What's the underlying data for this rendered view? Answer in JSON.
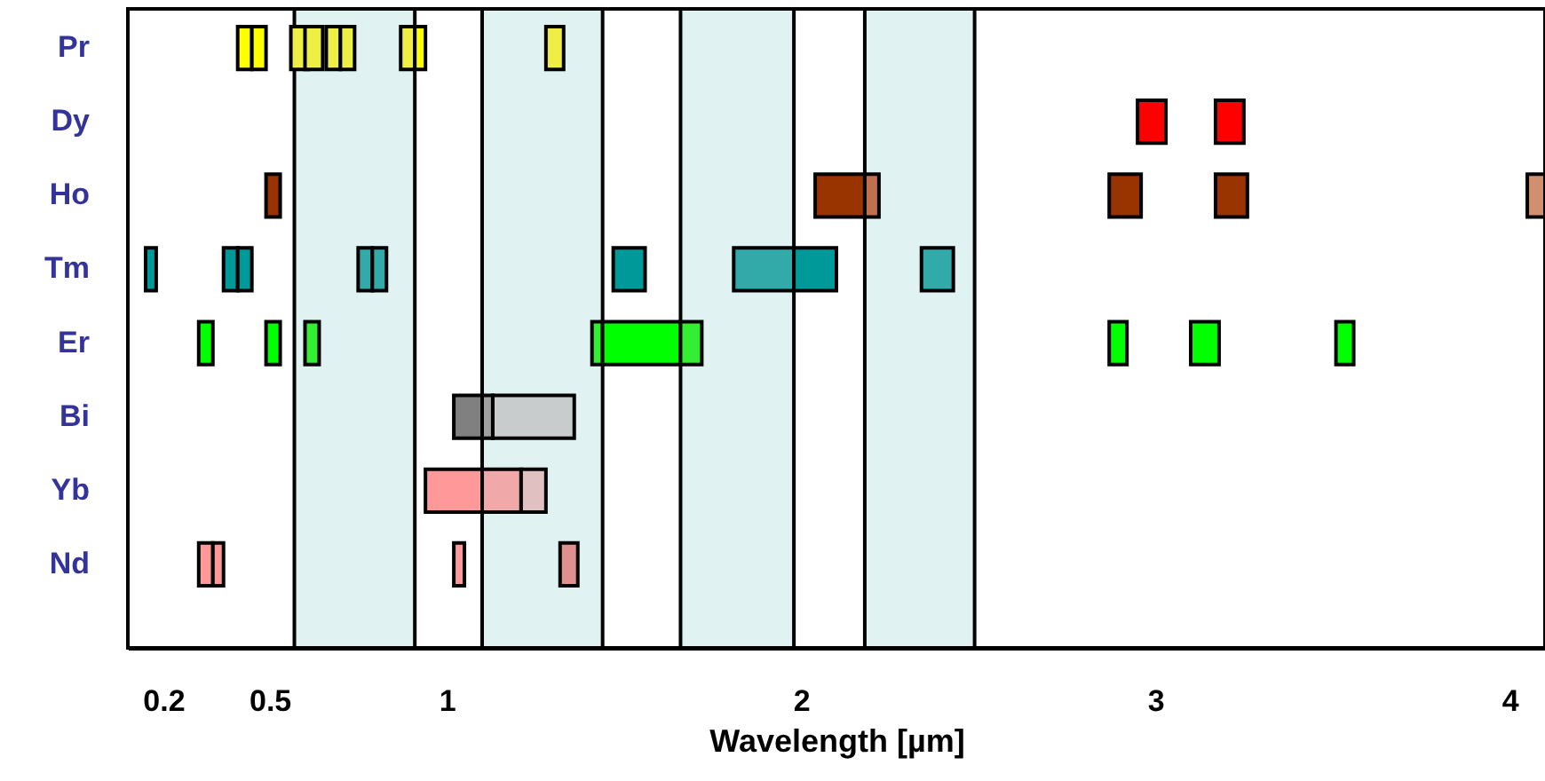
{
  "chart_data": {
    "type": "bar",
    "orientation": "horizontal",
    "xlabel": "Wavelength [µm]",
    "categories": [
      "Pr",
      "Dy",
      "Ho",
      "Tm",
      "Er",
      "Bi",
      "Yb",
      "Nd"
    ],
    "xlim": [
      0.1,
      4.1
    ],
    "xticks": [
      0.2,
      0.5,
      1,
      2,
      3,
      4
    ],
    "series": [
      {
        "values": [
          0.04,
          0.08,
          0.04,
          0.03,
          0.04,
          0.08,
          0.16,
          0.04
        ],
        "base": [
          0.41,
          2.95,
          0.49,
          0.15,
          0.3,
          1.02,
          0.94,
          0.3
        ],
        "colors": [
          "#ffff00",
          "#ff0000",
          "#993300",
          "#009999",
          "#00ff00",
          "#808080",
          "#ff9999",
          "#ff9999"
        ]
      },
      {
        "values": [
          0.04,
          0.08,
          0.14,
          0.04,
          0.04,
          0.03,
          0.11,
          0.03
        ],
        "base": [
          0.45,
          3.17,
          2.04,
          0.37,
          0.49,
          1.1,
          1.1,
          0.34
        ],
        "colors": [
          "#ffff00",
          "#ff0000",
          "#993300",
          "#009999",
          "#00ff00",
          "#a0a0a0",
          "#f0a8a8",
          "#ff9999"
        ]
      },
      {
        "values": [
          0.05,
          null,
          0.04,
          0.04,
          0.04,
          0.23,
          0.07,
          0.03
        ],
        "base": [
          0.56,
          null,
          2.18,
          0.41,
          0.6,
          1.13,
          1.21,
          1.02
        ],
        "colors": [
          "#eeee44",
          null,
          "#c07050",
          "#009999",
          "#33ee33",
          "#c8cccc",
          "#e0c0c0",
          "#ff9999"
        ]
      },
      {
        "values": [
          0.05,
          null,
          0.09,
          0.04,
          0.03,
          null,
          null,
          0.05
        ],
        "base": [
          0.6,
          null,
          2.87,
          0.75,
          1.41,
          null,
          null,
          1.32
        ],
        "colors": [
          "#eeee44",
          null,
          "#993300",
          "#33aaaa",
          "#33ee33",
          null,
          null,
          "#e09090"
        ]
      },
      {
        "values": [
          0.04,
          null,
          0.09,
          0.04,
          0.22,
          null,
          null,
          null
        ],
        "base": [
          0.66,
          null,
          3.17,
          0.79,
          1.44,
          null,
          null,
          null
        ],
        "colors": [
          "#eeee44",
          null,
          "#993300",
          "#33aaaa",
          "#00ff00",
          null,
          null,
          null
        ]
      },
      {
        "values": [
          0.04,
          null,
          0.05,
          0.09,
          0.06,
          null,
          null,
          null
        ],
        "base": [
          0.7,
          null,
          4.05,
          1.47,
          1.66,
          null,
          null,
          null
        ],
        "colors": [
          "#eeee44",
          null,
          "#d09070",
          "#009999",
          "#33ee33",
          null,
          null,
          null
        ]
      },
      {
        "values": [
          0.04,
          null,
          null,
          0.17,
          0.05,
          null,
          null,
          null
        ],
        "base": [
          0.87,
          null,
          null,
          1.81,
          2.87,
          null,
          null,
          null
        ],
        "colors": [
          "#eeee44",
          null,
          null,
          "#33aaaa",
          "#00ff00",
          null,
          null,
          null
        ]
      },
      {
        "values": [
          0.03,
          null,
          null,
          0.12,
          0.08,
          null,
          null,
          null
        ],
        "base": [
          0.91,
          null,
          null,
          1.98,
          3.1,
          null,
          null,
          null
        ],
        "colors": [
          "#ffff00",
          null,
          null,
          "#009999",
          "#00ff00",
          null,
          null,
          null
        ]
      },
      {
        "values": [
          0.05,
          null,
          null,
          0.09,
          0.05,
          null,
          null,
          null
        ],
        "base": [
          1.28,
          null,
          null,
          2.34,
          3.51,
          null,
          null,
          null
        ],
        "colors": [
          "#eeee44",
          null,
          null,
          "#33aaaa",
          "#00ff00",
          null,
          null,
          null
        ]
      }
    ],
    "bands": [
      {
        "axis": "x",
        "from": 0.57,
        "to": 0.91,
        "color": "#e0f2f2"
      },
      {
        "axis": "x",
        "from": 1.1,
        "to": 1.44,
        "color": "#e0f2f2"
      },
      {
        "axis": "x",
        "from": 1.66,
        "to": 1.98,
        "color": "#e0f2f2"
      },
      {
        "axis": "x",
        "from": 2.18,
        "to": 2.49,
        "color": "#e0f2f2"
      }
    ]
  }
}
